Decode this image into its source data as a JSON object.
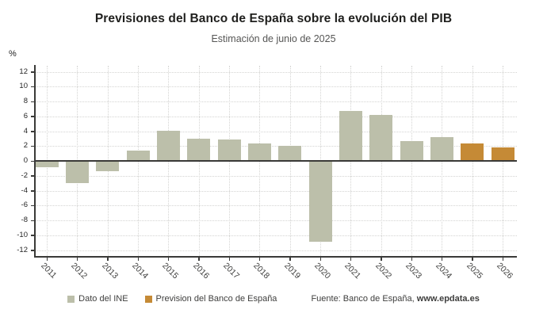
{
  "chart_data": {
    "type": "bar",
    "title": "Previsiones del Banco de España sobre la evolución del PIB",
    "subtitle": "Estimación de junio de 2025",
    "ylabel": "%",
    "xlabel": "",
    "categories": [
      "2011",
      "2012",
      "2013",
      "2014",
      "2015",
      "2016",
      "2017",
      "2018",
      "2019",
      "2020",
      "2021",
      "2022",
      "2023",
      "2024",
      "2025",
      "2026"
    ],
    "series": [
      {
        "name": "Dato del INE",
        "color": "#bcbfaa",
        "values": [
          -0.9,
          -3.0,
          -1.4,
          1.4,
          4.1,
          3.0,
          2.9,
          2.4,
          2.0,
          -10.9,
          6.7,
          6.2,
          2.7,
          3.2,
          null,
          null
        ]
      },
      {
        "name": "Prevision del Banco de España",
        "color": "#c58a36",
        "values": [
          null,
          null,
          null,
          null,
          null,
          null,
          null,
          null,
          null,
          null,
          null,
          null,
          null,
          null,
          2.4,
          1.8
        ]
      }
    ],
    "ylim": [
      -12.8,
      12.8
    ],
    "yticks": [
      12,
      10,
      8,
      6,
      4,
      2,
      0,
      -2,
      -4,
      -6,
      -8,
      -10,
      -12
    ],
    "grid": true,
    "legend_position": "bottom"
  },
  "legend": {
    "items": [
      {
        "label": "Dato del INE",
        "color": "#bcbfaa"
      },
      {
        "label": "Prevision del Banco de España",
        "color": "#c58a36"
      }
    ]
  },
  "source": {
    "prefix": "Fuente: Banco de España, ",
    "site": "www.epdata.es"
  },
  "colors": {
    "ine_bar": "#bcbfaa",
    "forecast_bar": "#c58a36",
    "axis": "#3a3a38",
    "gridline": "#d4d4d2",
    "title": "#1f1f1d",
    "subtitle": "#565655"
  }
}
